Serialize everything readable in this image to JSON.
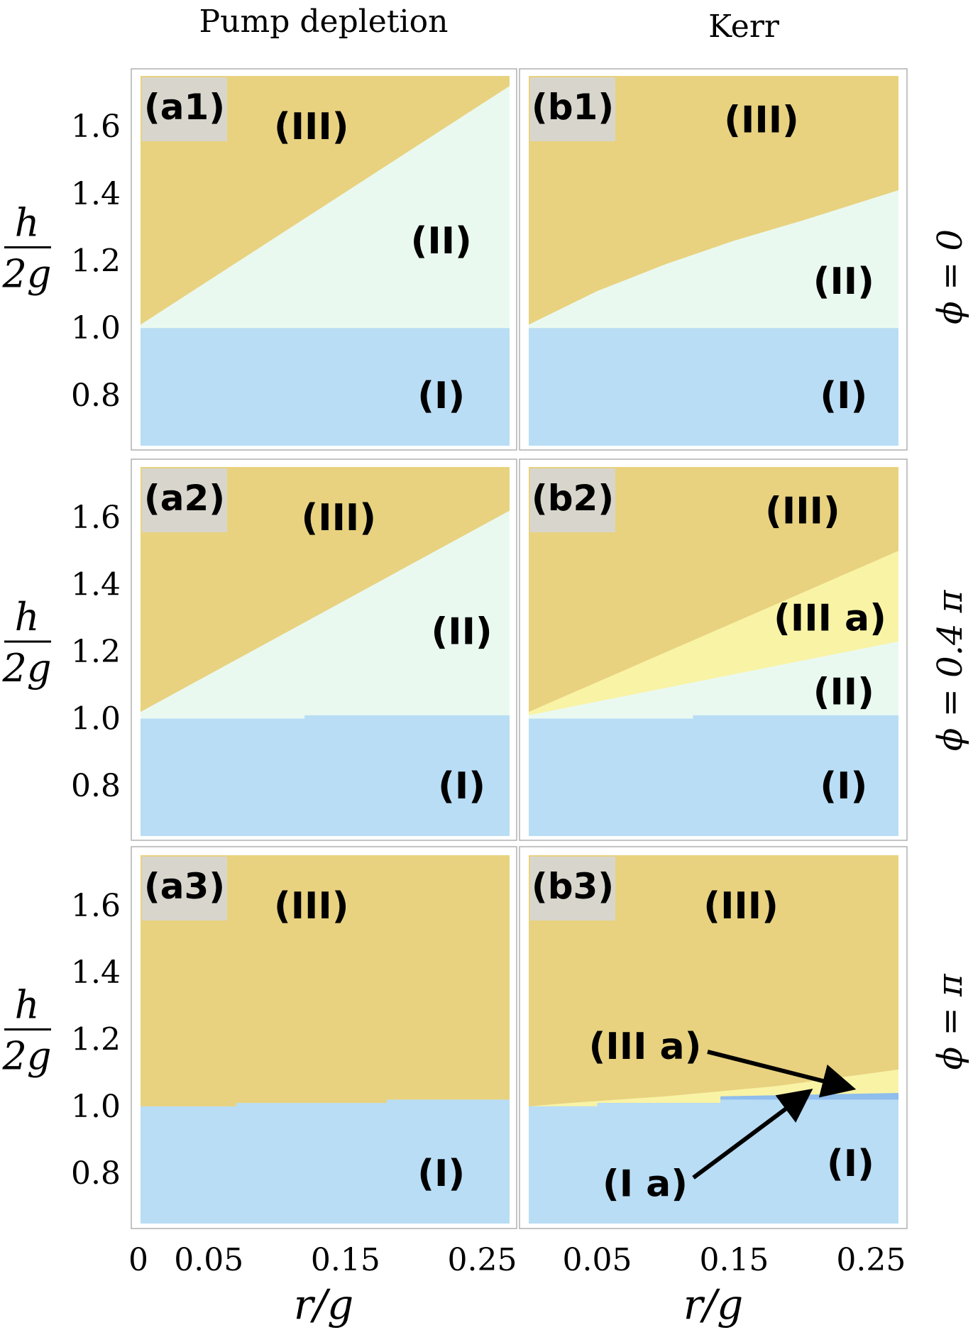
{
  "column_titles": [
    "Pump depletion",
    "Kerr"
  ],
  "row_labels": [
    "ϕ = 0",
    "ϕ = 0.4 π",
    "ϕ = π"
  ],
  "y_axis_label": {
    "numerator": "h",
    "denominator": "2g"
  },
  "x_axis_label": "r/g",
  "y_tick_labels": [
    "1.6",
    "1.4",
    "1.2",
    "1.0",
    "0.8"
  ],
  "x_tick_labels_left": [
    "0",
    "0.05",
    "0.15",
    "0.25"
  ],
  "x_tick_labels_right": [
    "0.05",
    "0.15",
    "0.25"
  ],
  "colors": {
    "region_III": "#e8d27f",
    "region_II": "#eaf9f0",
    "region_I": "#b9ddf5",
    "region_III_a": "#f9f3a6",
    "region_I_a": "#8fbdec",
    "label_bg": "#d8d6cc",
    "frame": "#b0b0b0",
    "arrow": "#000000"
  },
  "chart_data": {
    "type": "heatmap",
    "title": "",
    "xlabel": "r/g",
    "ylabel": "h/2g",
    "xlim": [
      0,
      0.27
    ],
    "ylim": [
      0.65,
      1.75
    ],
    "panels": [
      {
        "id": "a1",
        "label": "(a1)",
        "column": "Pump depletion",
        "phi": "0",
        "boundaries": [
          {
            "between": [
              "(I)",
              "(II)"
            ],
            "x": [
              0,
              0.27
            ],
            "y": [
              1.0,
              1.0
            ]
          },
          {
            "between": [
              "(II)",
              "(III)"
            ],
            "x": [
              0,
              0.27
            ],
            "y": [
              1.01,
              1.72
            ]
          }
        ],
        "regions": [
          {
            "name": "(III)",
            "color": "region_III",
            "label_at": [
              0.125,
              1.6
            ]
          },
          {
            "name": "(II)",
            "color": "region_II",
            "label_at": [
              0.22,
              1.26
            ]
          },
          {
            "name": "(I)",
            "color": "region_I",
            "label_at": [
              0.22,
              0.8
            ]
          }
        ]
      },
      {
        "id": "b1",
        "label": "(b1)",
        "column": "Kerr",
        "phi": "0",
        "boundaries": [
          {
            "between": [
              "(I)",
              "(II)"
            ],
            "x": [
              0,
              0.27
            ],
            "y": [
              1.0,
              1.0
            ]
          },
          {
            "between": [
              "(II)",
              "(III)"
            ],
            "x": [
              0,
              0.05,
              0.1,
              0.15,
              0.2,
              0.27
            ],
            "y": [
              1.01,
              1.11,
              1.19,
              1.26,
              1.32,
              1.41
            ]
          }
        ],
        "regions": [
          {
            "name": "(III)",
            "color": "region_III",
            "label_at": [
              0.17,
              1.62
            ]
          },
          {
            "name": "(II)",
            "color": "region_II",
            "label_at": [
              0.23,
              1.14
            ]
          },
          {
            "name": "(I)",
            "color": "region_I",
            "label_at": [
              0.23,
              0.8
            ]
          }
        ]
      },
      {
        "id": "a2",
        "label": "(a2)",
        "column": "Pump depletion",
        "phi": "0.4 π",
        "boundaries": [
          {
            "between": [
              "(I)",
              "(II)"
            ],
            "x": [
              0,
              0.12,
              0.12,
              0.27
            ],
            "y": [
              1.0,
              1.0,
              1.01,
              1.01
            ]
          },
          {
            "between": [
              "(II)",
              "(III)"
            ],
            "x": [
              0,
              0.27
            ],
            "y": [
              1.02,
              1.62
            ]
          }
        ],
        "regions": [
          {
            "name": "(III)",
            "color": "region_III",
            "label_at": [
              0.145,
              1.6
            ]
          },
          {
            "name": "(II)",
            "color": "region_II",
            "label_at": [
              0.235,
              1.26
            ]
          },
          {
            "name": "(I)",
            "color": "region_I",
            "label_at": [
              0.235,
              0.8
            ]
          }
        ]
      },
      {
        "id": "b2",
        "label": "(b2)",
        "column": "Kerr",
        "phi": "0.4 π",
        "boundaries": [
          {
            "between": [
              "(I)",
              "(II)"
            ],
            "x": [
              0,
              0.12,
              0.12,
              0.27
            ],
            "y": [
              1.0,
              1.0,
              1.01,
              1.01
            ]
          },
          {
            "between": [
              "(II)",
              "(III a)"
            ],
            "x": [
              0,
              0.27
            ],
            "y": [
              1.01,
              1.23
            ]
          },
          {
            "between": [
              "(III a)",
              "(III)"
            ],
            "x": [
              0,
              0.27
            ],
            "y": [
              1.02,
              1.5
            ]
          }
        ],
        "regions": [
          {
            "name": "(III)",
            "color": "region_III",
            "label_at": [
              0.2,
              1.62
            ]
          },
          {
            "name": "(III a)",
            "color": "region_III_a",
            "label_at": [
              0.22,
              1.3
            ]
          },
          {
            "name": "(II)",
            "color": "region_II",
            "label_at": [
              0.23,
              1.08
            ]
          },
          {
            "name": "(I)",
            "color": "region_I",
            "label_at": [
              0.23,
              0.8
            ]
          }
        ]
      },
      {
        "id": "a3",
        "label": "(a3)",
        "column": "Pump depletion",
        "phi": "π",
        "boundaries": [
          {
            "between": [
              "(I)",
              "(III)"
            ],
            "x": [
              0,
              0.07,
              0.07,
              0.18,
              0.18,
              0.27
            ],
            "y": [
              1.0,
              1.0,
              1.01,
              1.01,
              1.02,
              1.02
            ]
          }
        ],
        "regions": [
          {
            "name": "(III)",
            "color": "region_III",
            "label_at": [
              0.125,
              1.6
            ]
          },
          {
            "name": "(I)",
            "color": "region_I",
            "label_at": [
              0.22,
              0.8
            ]
          }
        ]
      },
      {
        "id": "b3",
        "label": "(b3)",
        "column": "Kerr",
        "phi": "π",
        "boundaries": [
          {
            "between": [
              "(I)",
              "(I a)"
            ],
            "x": [
              0,
              0.05,
              0.05,
              0.14,
              0.14,
              0.27
            ],
            "y": [
              1.0,
              1.0,
              1.01,
              1.01,
              1.02,
              1.02
            ]
          },
          {
            "between": [
              "(I a)",
              "(III a)"
            ],
            "x": [
              0,
              0.05,
              0.05,
              0.14,
              0.14,
              0.27
            ],
            "y": [
              1.0,
              1.0,
              1.01,
              1.01,
              1.03,
              1.04
            ]
          },
          {
            "between": [
              "(III a)",
              "(III)"
            ],
            "x": [
              0,
              0.03,
              0.1,
              0.18,
              0.27
            ],
            "y": [
              1.0,
              1.01,
              1.03,
              1.06,
              1.11
            ]
          }
        ],
        "regions": [
          {
            "name": "(III)",
            "color": "region_III",
            "label_at": [
              0.155,
              1.6
            ]
          },
          {
            "name": "(I)",
            "color": "region_I",
            "label_at": [
              0.235,
              0.83
            ]
          }
        ],
        "annotations": [
          {
            "text": "(III a)",
            "label_at": [
              0.085,
              1.18
            ],
            "arrow_to": [
              0.23,
              1.06
            ]
          },
          {
            "text": "(I a)",
            "label_at": [
              0.085,
              0.77
            ],
            "arrow_to": [
              0.2,
              1.03
            ]
          }
        ]
      }
    ]
  }
}
